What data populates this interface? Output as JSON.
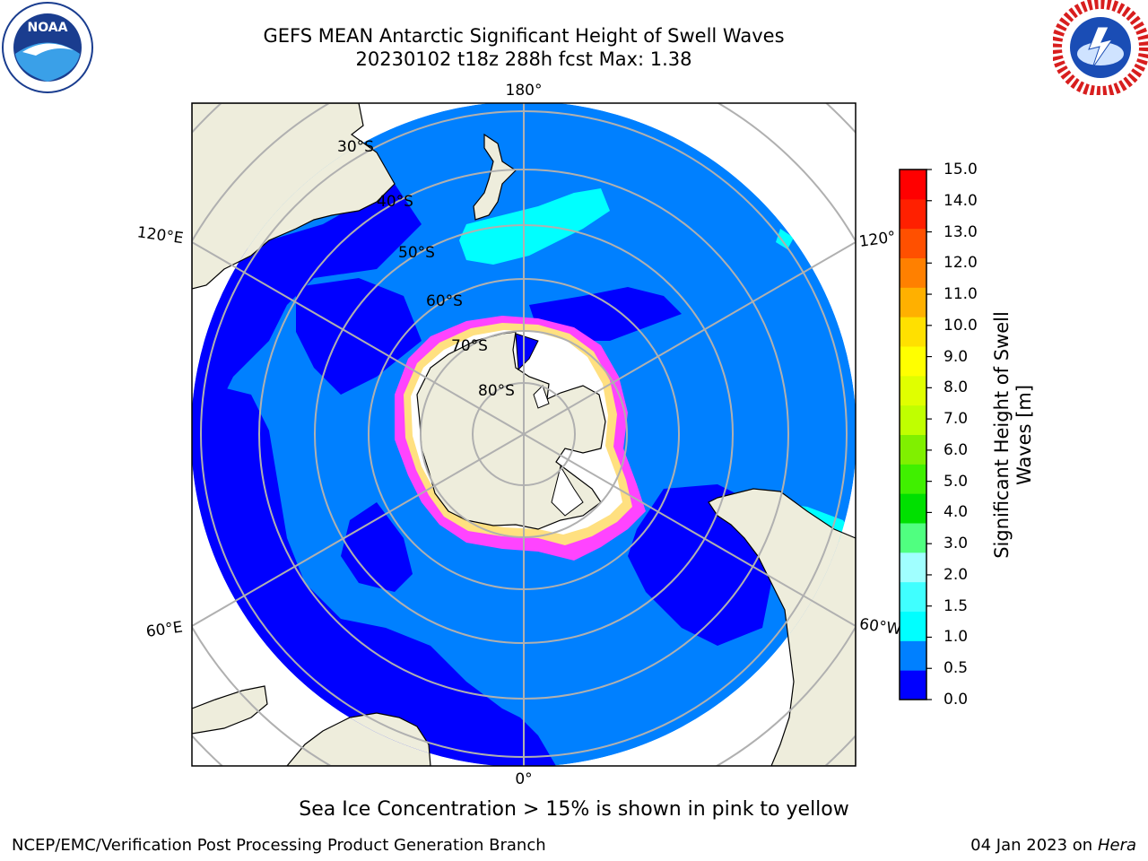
{
  "header": {
    "title_line1": "GEFS MEAN Antarctic Significant Height of Swell Waves",
    "title_line2": "20230102 t18z 288h fcst   Max: 1.38",
    "left_logo": "noaa-logo",
    "right_logo": "national-weather-service-logo"
  },
  "map": {
    "projection": "south-polar-stereographic",
    "longitude_labels": {
      "top": "180°",
      "bottom": "0°",
      "upper_left": "120°E",
      "upper_right": "120°",
      "lower_left": "60°E",
      "lower_right": "60°W"
    },
    "latitude_labels": [
      "30°S",
      "40°S",
      "50°S",
      "60°S",
      "70°S",
      "80°S"
    ],
    "colors": {
      "land": "#eeeddc",
      "ocean_low": "#0000ff",
      "ocean_mid": "#0080ff",
      "swell_high": "#00ffff",
      "ice_pink": "#ff44ff",
      "ice_yellow": "#ffe080",
      "grid": "#b0b0b0"
    }
  },
  "colorbar": {
    "label": "Significant Height of Swell\nWaves [m]",
    "label_line1": "Significant Height of Swell",
    "label_line2": "Waves [m]",
    "ticks": [
      "15.0",
      "14.0",
      "13.0",
      "12.0",
      "11.0",
      "10.0",
      "9.0",
      "8.0",
      "7.0",
      "6.0",
      "5.0",
      "4.0",
      "3.0",
      "2.0",
      "1.5",
      "1.0",
      "0.5",
      "0.0"
    ],
    "colors": [
      "#0000ff",
      "#0080ff",
      "#00ffff",
      "#40ffff",
      "#a0ffff",
      "#50ff80",
      "#00e000",
      "#40f000",
      "#80f000",
      "#c0ff00",
      "#e0ff00",
      "#ffff00",
      "#ffe000",
      "#ffb000",
      "#ff8000",
      "#ff5000",
      "#ff2000",
      "#ff0000"
    ]
  },
  "notes": {
    "sea_ice": "Sea Ice Concentration > 15% is shown in pink to yellow"
  },
  "footer": {
    "left": "NCEP/EMC/Verification Post Processing Product Generation Branch",
    "date": "04 Jan 2023 on ",
    "host": "Hera"
  }
}
